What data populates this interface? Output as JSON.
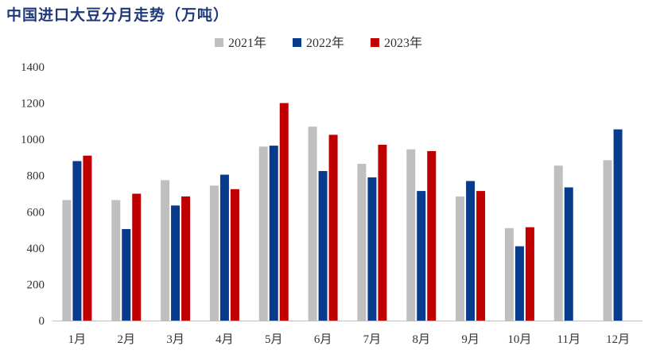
{
  "chart_data": {
    "type": "bar",
    "title": "中国进口大豆分月走势（万吨）",
    "xlabel": "",
    "ylabel": "",
    "ylim": [
      0,
      1400
    ],
    "yticks": [
      "0",
      "200",
      "400",
      "600",
      "800",
      "1000",
      "1200",
      "1400"
    ],
    "grid": false,
    "legend_position": "top-center",
    "categories": [
      "1月",
      "2月",
      "3月",
      "4月",
      "5月",
      "6月",
      "7月",
      "8月",
      "9月",
      "10月",
      "11月",
      "12月"
    ],
    "series": [
      {
        "name": "2021年",
        "color": "#bfbfbf",
        "values": [
          665,
          665,
          775,
          745,
          960,
          1070,
          865,
          945,
          685,
          510,
          855,
          885
        ]
      },
      {
        "name": "2022年",
        "color": "#083b8c",
        "values": [
          880,
          505,
          635,
          805,
          965,
          825,
          790,
          715,
          770,
          410,
          735,
          1055
        ]
      },
      {
        "name": "2023年",
        "color": "#c00000",
        "values": [
          910,
          700,
          685,
          725,
          1200,
          1025,
          970,
          935,
          715,
          515,
          null,
          null
        ]
      }
    ]
  }
}
